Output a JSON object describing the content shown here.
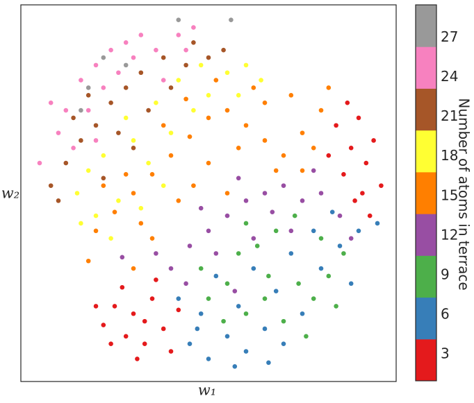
{
  "chart_data": {
    "type": "scatter",
    "xlabel": "w₁",
    "ylabel": "w₂",
    "xlim": [
      0,
      100
    ],
    "ylim": [
      0,
      100
    ],
    "colorbar": {
      "label": "Number of atoms in terrace",
      "lim": [
        1,
        29.5
      ],
      "ticks": [
        3,
        6,
        9,
        12,
        15,
        18,
        21,
        24,
        27
      ],
      "colors": [
        "#e41a1c",
        "#377eb8",
        "#4daf4a",
        "#984ea3",
        "#ff7f00",
        "#ffff33",
        "#a65628",
        "#f781bf",
        "#999999"
      ]
    },
    "points": [
      [
        22,
        15,
        3
      ],
      [
        25,
        20,
        3
      ],
      [
        28,
        12,
        3
      ],
      [
        30,
        18,
        3
      ],
      [
        33,
        10,
        3
      ],
      [
        35,
        22,
        3
      ],
      [
        27,
        25,
        3
      ],
      [
        38,
        14,
        3
      ],
      [
        40,
        8,
        3
      ],
      [
        24,
        10,
        3
      ],
      [
        31,
        6,
        3
      ],
      [
        36,
        27,
        3
      ],
      [
        42,
        19,
        3
      ],
      [
        20,
        20,
        3
      ],
      [
        33,
        16,
        3
      ],
      [
        84,
        68,
        3
      ],
      [
        88,
        62,
        3
      ],
      [
        92,
        58,
        3
      ],
      [
        86,
        55,
        3
      ],
      [
        90,
        70,
        3
      ],
      [
        94,
        64,
        3
      ],
      [
        89,
        48,
        3
      ],
      [
        93,
        44,
        3
      ],
      [
        82,
        60,
        3
      ],
      [
        96,
        52,
        3
      ],
      [
        87,
        74,
        3
      ],
      [
        91,
        50,
        3
      ],
      [
        45,
        10,
        6
      ],
      [
        50,
        6,
        6
      ],
      [
        55,
        12,
        6
      ],
      [
        60,
        8,
        6
      ],
      [
        65,
        14,
        6
      ],
      [
        70,
        10,
        6
      ],
      [
        48,
        18,
        6
      ],
      [
        58,
        20,
        6
      ],
      [
        68,
        24,
        6
      ],
      [
        75,
        18,
        6
      ],
      [
        80,
        30,
        6
      ],
      [
        85,
        36,
        6
      ],
      [
        90,
        40,
        6
      ],
      [
        88,
        26,
        6
      ],
      [
        78,
        40,
        6
      ],
      [
        62,
        30,
        6
      ],
      [
        52,
        28,
        6
      ],
      [
        42,
        22,
        6
      ],
      [
        72,
        34,
        6
      ],
      [
        83,
        45,
        6
      ],
      [
        95,
        42,
        6
      ],
      [
        57,
        4,
        6
      ],
      [
        66,
        5,
        6
      ],
      [
        47,
        14,
        6
      ],
      [
        50,
        22,
        9
      ],
      [
        55,
        26,
        9
      ],
      [
        60,
        18,
        9
      ],
      [
        65,
        22,
        9
      ],
      [
        70,
        16,
        9
      ],
      [
        74,
        26,
        9
      ],
      [
        78,
        22,
        9
      ],
      [
        82,
        28,
        9
      ],
      [
        86,
        34,
        9
      ],
      [
        63,
        36,
        9
      ],
      [
        58,
        34,
        9
      ],
      [
        68,
        40,
        9
      ],
      [
        73,
        44,
        9
      ],
      [
        80,
        38,
        9
      ],
      [
        54,
        16,
        9
      ],
      [
        48,
        30,
        9
      ],
      [
        76,
        12,
        9
      ],
      [
        84,
        20,
        9
      ],
      [
        66,
        28,
        9
      ],
      [
        60,
        42,
        9
      ],
      [
        40,
        30,
        12
      ],
      [
        45,
        36,
        12
      ],
      [
        50,
        40,
        12
      ],
      [
        55,
        44,
        12
      ],
      [
        60,
        48,
        12
      ],
      [
        65,
        50,
        12
      ],
      [
        70,
        52,
        12
      ],
      [
        75,
        48,
        12
      ],
      [
        80,
        50,
        12
      ],
      [
        85,
        44,
        12
      ],
      [
        62,
        38,
        12
      ],
      [
        52,
        34,
        12
      ],
      [
        67,
        45,
        12
      ],
      [
        72,
        40,
        12
      ],
      [
        44,
        26,
        12
      ],
      [
        36,
        34,
        12
      ],
      [
        58,
        54,
        12
      ],
      [
        78,
        56,
        12
      ],
      [
        88,
        38,
        12
      ],
      [
        48,
        46,
        12
      ],
      [
        27,
        33,
        12
      ],
      [
        57,
        24,
        12
      ],
      [
        20,
        40,
        15
      ],
      [
        25,
        45,
        15
      ],
      [
        30,
        50,
        15
      ],
      [
        35,
        55,
        15
      ],
      [
        40,
        60,
        15
      ],
      [
        45,
        65,
        15
      ],
      [
        50,
        70,
        15
      ],
      [
        55,
        72,
        15
      ],
      [
        60,
        68,
        15
      ],
      [
        65,
        64,
        15
      ],
      [
        70,
        60,
        15
      ],
      [
        75,
        66,
        15
      ],
      [
        80,
        72,
        15
      ],
      [
        72,
        76,
        15
      ],
      [
        62,
        78,
        15
      ],
      [
        50,
        58,
        15
      ],
      [
        42,
        48,
        15
      ],
      [
        32,
        42,
        15
      ],
      [
        28,
        55,
        15
      ],
      [
        38,
        68,
        15
      ],
      [
        55,
        50,
        15
      ],
      [
        68,
        56,
        15
      ],
      [
        78,
        62,
        15
      ],
      [
        82,
        78,
        15
      ],
      [
        58,
        62,
        15
      ],
      [
        46,
        52,
        15
      ],
      [
        35,
        38,
        15
      ],
      [
        22,
        52,
        15
      ],
      [
        65,
        74,
        15
      ],
      [
        75,
        56,
        15
      ],
      [
        52,
        80,
        15
      ],
      [
        44,
        75,
        15
      ],
      [
        18,
        32,
        15
      ],
      [
        30,
        30,
        15
      ],
      [
        15,
        50,
        18
      ],
      [
        18,
        56,
        18
      ],
      [
        22,
        60,
        18
      ],
      [
        26,
        48,
        18
      ],
      [
        30,
        64,
        18
      ],
      [
        34,
        58,
        18
      ],
      [
        38,
        52,
        18
      ],
      [
        20,
        44,
        18
      ],
      [
        24,
        38,
        18
      ],
      [
        28,
        70,
        18
      ],
      [
        36,
        74,
        18
      ],
      [
        42,
        80,
        18
      ],
      [
        48,
        84,
        18
      ],
      [
        55,
        82,
        18
      ],
      [
        60,
        84,
        18
      ],
      [
        64,
        80,
        18
      ],
      [
        58,
        76,
        18
      ],
      [
        46,
        72,
        18
      ],
      [
        40,
        66,
        18
      ],
      [
        32,
        46,
        18
      ],
      [
        16,
        42,
        18
      ],
      [
        50,
        76,
        18
      ],
      [
        8,
        52,
        21
      ],
      [
        12,
        58,
        21
      ],
      [
        16,
        64,
        21
      ],
      [
        20,
        68,
        21
      ],
      [
        24,
        74,
        21
      ],
      [
        28,
        78,
        21
      ],
      [
        32,
        82,
        21
      ],
      [
        38,
        86,
        21
      ],
      [
        44,
        84,
        21
      ],
      [
        50,
        86,
        21
      ],
      [
        54,
        88,
        21
      ],
      [
        40,
        78,
        21
      ],
      [
        34,
        72,
        21
      ],
      [
        26,
        66,
        21
      ],
      [
        14,
        70,
        21
      ],
      [
        18,
        76,
        21
      ],
      [
        46,
        90,
        21
      ],
      [
        30,
        62,
        21
      ],
      [
        10,
        48,
        21
      ],
      [
        22,
        54,
        21
      ],
      [
        5,
        58,
        24
      ],
      [
        10,
        66,
        24
      ],
      [
        12,
        72,
        24
      ],
      [
        16,
        80,
        24
      ],
      [
        20,
        84,
        24
      ],
      [
        24,
        88,
        24
      ],
      [
        28,
        90,
        24
      ],
      [
        32,
        92,
        24
      ],
      [
        36,
        88,
        24
      ],
      [
        42,
        92,
        24
      ],
      [
        46,
        94,
        24
      ],
      [
        14,
        62,
        24
      ],
      [
        18,
        72,
        24
      ],
      [
        22,
        78,
        24
      ],
      [
        26,
        82,
        24
      ],
      [
        30,
        86,
        24
      ],
      [
        8,
        74,
        24
      ],
      [
        38,
        80,
        24
      ],
      [
        44,
        88,
        24
      ],
      [
        20,
        64,
        24
      ],
      [
        18,
        78,
        27
      ],
      [
        22,
        86,
        27
      ],
      [
        28,
        84,
        27
      ],
      [
        16,
        72,
        27
      ],
      [
        56,
        96,
        27
      ],
      [
        42,
        96,
        27
      ]
    ]
  }
}
